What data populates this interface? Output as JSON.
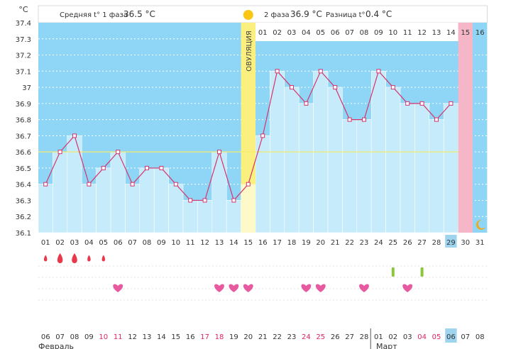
{
  "chart_data": {
    "type": "line",
    "unit_label": "°C",
    "y_ticks": [
      "37.4",
      "37.3",
      "37.2",
      "37.1",
      "37",
      "36.9",
      "36.8",
      "36.7",
      "36.6",
      "36.5",
      "36.4",
      "36.3",
      "36.2",
      "36.1"
    ],
    "ylim": [
      36.1,
      37.4
    ],
    "days": [
      "01",
      "02",
      "03",
      "04",
      "05",
      "06",
      "07",
      "08",
      "09",
      "10",
      "11",
      "12",
      "13",
      "14",
      "15",
      "16",
      "17",
      "18",
      "19",
      "20",
      "21",
      "22",
      "23",
      "24",
      "25",
      "26",
      "27",
      "28",
      "29",
      "30",
      "31"
    ],
    "temps": [
      36.4,
      36.6,
      36.7,
      36.4,
      36.5,
      36.6,
      36.4,
      36.5,
      36.5,
      36.4,
      36.3,
      36.3,
      36.6,
      36.3,
      36.4,
      36.7,
      37.1,
      37.0,
      36.9,
      37.1,
      37.0,
      36.8,
      36.8,
      37.1,
      37.0,
      36.9,
      36.9,
      36.8,
      36.9,
      null,
      null
    ],
    "cover_line": 36.6,
    "ovulation_day": 15,
    "ovulation_label": "ОВУЛЯЦИЯ",
    "phase1": {
      "label": "Средняя t° 1 фаза",
      "value": "36.5 °C"
    },
    "phase2": {
      "label": "2 фаза",
      "value": "36.9 °C"
    },
    "diff": {
      "label": "Разница t°",
      "value": "0.4 °C"
    },
    "phase2_days": [
      "01",
      "02",
      "03",
      "04",
      "05",
      "06",
      "07",
      "08",
      "09",
      "10",
      "11",
      "12",
      "13",
      "14",
      "15",
      "16"
    ],
    "highlight_day": "29",
    "period_days": [
      {
        "day": 1,
        "size": "s"
      },
      {
        "day": 2,
        "size": "l"
      },
      {
        "day": 3,
        "size": "l"
      },
      {
        "day": 4,
        "size": "s"
      },
      {
        "day": 5,
        "size": "s"
      }
    ],
    "heart_days": [
      6,
      13,
      14,
      15,
      19,
      20,
      23,
      26
    ],
    "marker_days": [
      25,
      27
    ],
    "dates": [
      "06",
      "07",
      "08",
      "09",
      "10",
      "11",
      "12",
      "13",
      "14",
      "15",
      "16",
      "17",
      "18",
      "19",
      "20",
      "21",
      "22",
      "23",
      "24",
      "25",
      "26",
      "27",
      "28",
      "01",
      "02",
      "03",
      "04",
      "05",
      "06",
      "07",
      "08"
    ],
    "red_date_days": [
      5,
      6,
      12,
      13,
      19,
      20,
      27,
      28
    ],
    "highlight_date_day": 29,
    "month1": "Февраль",
    "month2": "Март",
    "colors": {
      "sky": "#8fd5f5",
      "bar": "#c6ebfb",
      "line": "#d6336c",
      "ovulation": "#fbf07f",
      "pink": "#f5b6c8",
      "heart": "#e85aa0",
      "drop": "#e8384a",
      "marker": "#8cc63f",
      "highlight": "#9ed4ee"
    }
  }
}
